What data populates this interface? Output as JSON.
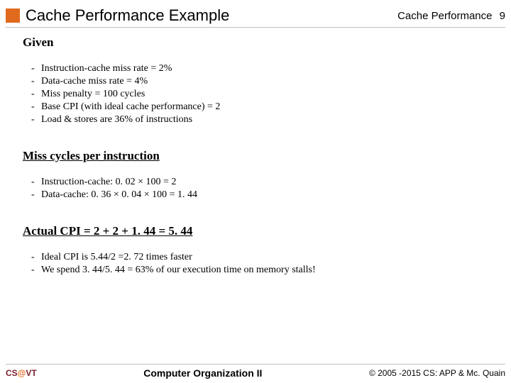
{
  "colors": {
    "accent_orange": "#e06a1e",
    "rule_gray": "#bfbfbf",
    "cs_maroon": "#7a1e2b",
    "at_orange": "#e06a1e",
    "vt_maroon": "#7a1e2b",
    "text": "#000000"
  },
  "header": {
    "title": "Cache Performance Example",
    "topic": "Cache Performance",
    "page_number": "9"
  },
  "sections": {
    "given": {
      "heading": "Given",
      "items": [
        "Instruction-cache miss rate = 2%",
        "Data-cache miss rate = 4%",
        "Miss penalty = 100 cycles",
        "Base CPI (with ideal cache performance) = 2",
        "Load & stores are 36% of instructions"
      ]
    },
    "miss_cycles": {
      "heading": "Miss cycles per instruction",
      "items": [
        "Instruction-cache: 0. 02 × 100 = 2",
        "Data-cache: 0. 36 × 0. 04 × 100 = 1. 44"
      ]
    },
    "actual_cpi": {
      "heading": "Actual CPI = 2 + 2 + 1. 44 = 5. 44",
      "items": [
        "Ideal CPI is 5.44/2 =2. 72 times faster",
        "We spend 3. 44/5. 44 = 63% of our execution time on memory stalls!"
      ]
    }
  },
  "footer": {
    "left_cs": "CS",
    "left_at": "@",
    "left_vt": "VT",
    "center": "Computer Organization II",
    "right": "© 2005 -2015 CS: APP & Mc. Quain"
  }
}
